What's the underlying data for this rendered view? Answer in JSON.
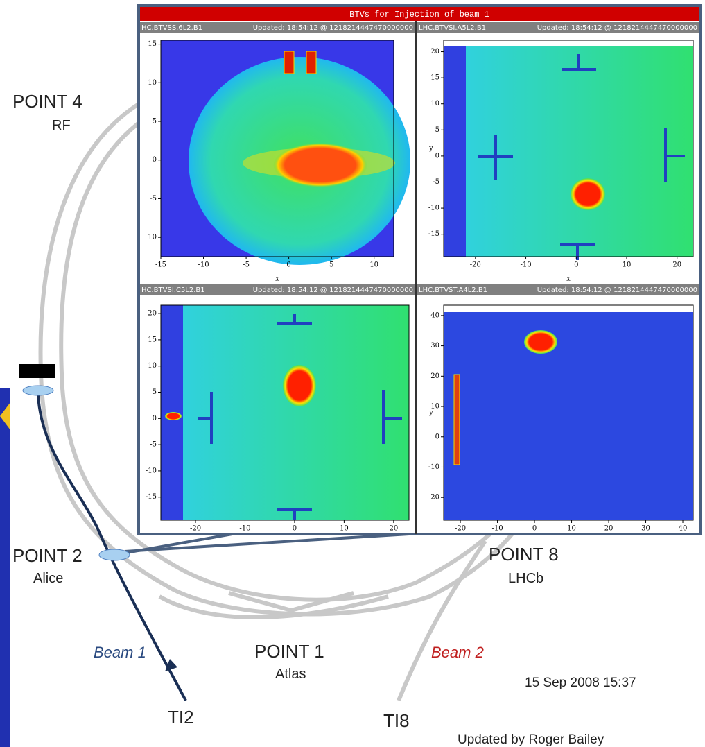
{
  "window": {
    "title": "BTVs for Injection of beam 1",
    "panels": [
      {
        "name": "HC.BTVSS.6L2.B1",
        "updated": "Updated: 18:54:12 @ 1218214447470000000",
        "xlim": [
          -15,
          12.3
        ],
        "ylim": [
          -12.5,
          15.5
        ],
        "xticks": [
          -15,
          -10,
          -5,
          0,
          5,
          10
        ],
        "yticks": [
          -10,
          -5,
          0,
          5,
          10,
          15
        ],
        "xlabel": "x"
      },
      {
        "name": "LHC.BTVSI.A5L2.B1",
        "updated": "Updated: 18:54:12 @ 1218214447470000000",
        "xlim": [
          -26.3,
          23.2
        ],
        "ylim": [
          -19.3,
          22.2
        ],
        "xticks": [
          -20,
          -10,
          0,
          10,
          20
        ],
        "yticks": [
          -15,
          -10,
          -5,
          0,
          5,
          10,
          15,
          20
        ],
        "xlabel": "x",
        "ylabel": "y"
      },
      {
        "name": "HC.BTVSI.C5L2.B1",
        "updated": "Updated: 18:54:12 @ 1218214447470000000",
        "xlim": [
          -27,
          23.1
        ],
        "ylim": [
          -19.4,
          21.6
        ],
        "xticks": [
          -20,
          -10,
          0,
          10,
          20
        ],
        "yticks": [
          -15,
          -10,
          -5,
          0,
          5,
          10,
          15,
          20
        ]
      },
      {
        "name": "LHC.BTVST.A4L2.B1",
        "updated": "Updated: 18:54:12 @ 1218214447470000000",
        "xlim": [
          -24.5,
          42.8
        ],
        "ylim": [
          -27.5,
          43.4
        ],
        "xticks": [
          -20,
          -10,
          0,
          10,
          20,
          30,
          40
        ],
        "yticks": [
          -20,
          -10,
          0,
          10,
          20,
          30,
          40
        ],
        "ylabel": "y"
      }
    ]
  },
  "map": {
    "point4": "POINT 4",
    "rf": "RF",
    "point2": "POINT 2",
    "alice": "Alice",
    "point8": "POINT 8",
    "lhcb": "LHCb",
    "point1": "POINT 1",
    "atlas": "Atlas",
    "beam1": "Beam 1",
    "beam2": "Beam 2",
    "date": "15 Sep 2008 15:37",
    "ti2": "TI2",
    "ti8": "TI8",
    "credit": "Updated by Roger Bailey"
  }
}
